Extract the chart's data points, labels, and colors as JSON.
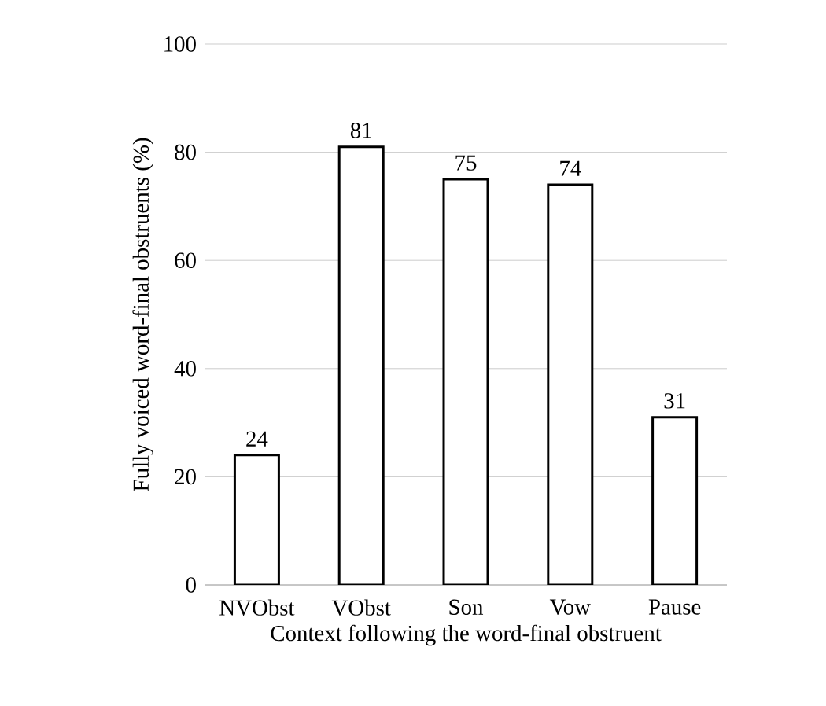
{
  "chart_data": {
    "type": "bar",
    "xlabel": "Context following the word-final obstruent",
    "ylabel": "Fully voiced  word-final obstruents (%)",
    "categories": [
      "NVObst",
      "VObst",
      "Son",
      "Vow",
      "Pause"
    ],
    "values": [
      24,
      81,
      75,
      74,
      31
    ],
    "color": "#ffffff",
    "ylim": [
      0,
      100
    ],
    "yticks": [
      0,
      20,
      40,
      60,
      80,
      100
    ],
    "grid": "y",
    "data_labels": true
  }
}
